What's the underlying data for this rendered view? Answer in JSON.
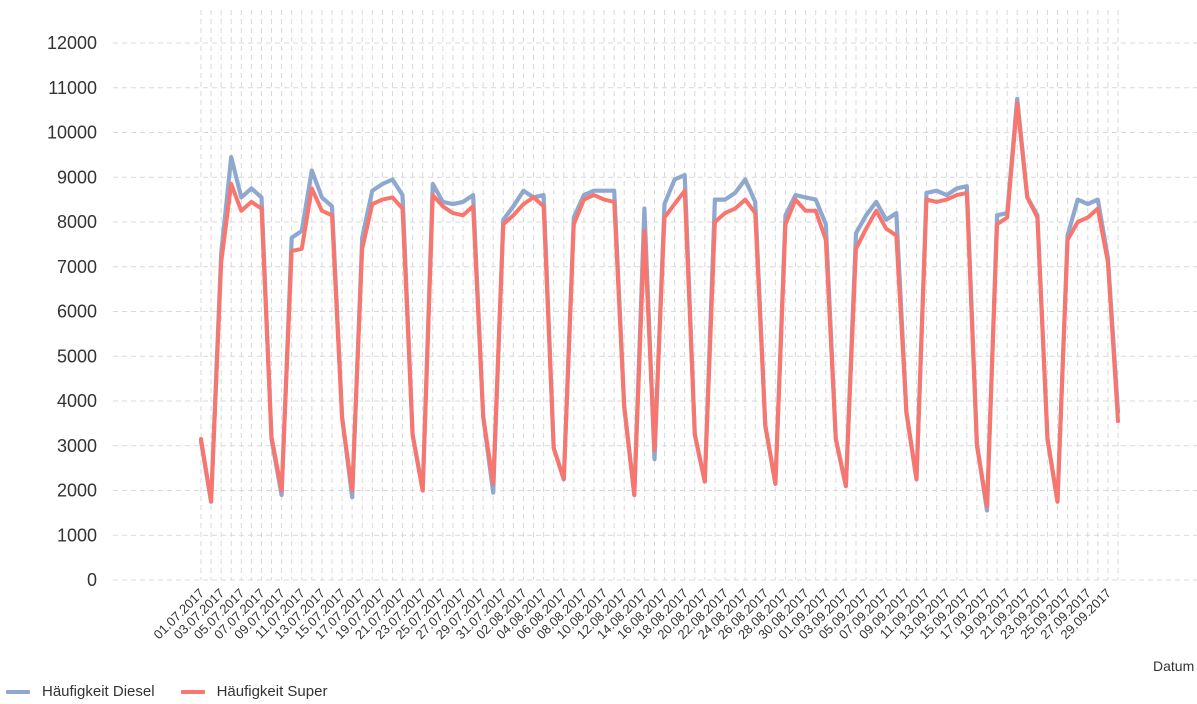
{
  "chart_data": {
    "type": "line",
    "xlabel": "Datum",
    "ylabel": "",
    "ylim": [
      0,
      12000
    ],
    "yticks": [
      0,
      1000,
      2000,
      3000,
      4000,
      5000,
      6000,
      7000,
      8000,
      9000,
      10000,
      11000,
      12000
    ],
    "grid": true,
    "legend": "bottom-left",
    "x": [
      "01.07.2017",
      "02.07.2017",
      "03.07.2017",
      "04.07.2017",
      "05.07.2017",
      "06.07.2017",
      "07.07.2017",
      "08.07.2017",
      "09.07.2017",
      "10.07.2017",
      "11.07.2017",
      "12.07.2017",
      "13.07.2017",
      "14.07.2017",
      "15.07.2017",
      "16.07.2017",
      "17.07.2017",
      "18.07.2017",
      "19.07.2017",
      "20.07.2017",
      "21.07.2017",
      "22.07.2017",
      "23.07.2017",
      "24.07.2017",
      "25.07.2017",
      "26.07.2017",
      "27.07.2017",
      "28.07.2017",
      "29.07.2017",
      "30.07.2017",
      "31.07.2017",
      "01.08.2017",
      "02.08.2017",
      "03.08.2017",
      "04.08.2017",
      "05.08.2017",
      "06.08.2017",
      "07.08.2017",
      "08.08.2017",
      "09.08.2017",
      "10.08.2017",
      "11.08.2017",
      "12.08.2017",
      "13.08.2017",
      "14.08.2017",
      "15.08.2017",
      "16.08.2017",
      "17.08.2017",
      "18.08.2017",
      "19.08.2017",
      "20.08.2017",
      "21.08.2017",
      "22.08.2017",
      "23.08.2017",
      "24.08.2017",
      "25.08.2017",
      "26.08.2017",
      "27.08.2017",
      "28.08.2017",
      "29.08.2017",
      "30.08.2017",
      "31.08.2017",
      "01.09.2017",
      "02.09.2017",
      "03.09.2017",
      "04.09.2017",
      "05.09.2017",
      "06.09.2017",
      "07.09.2017",
      "08.09.2017",
      "09.09.2017",
      "10.09.2017",
      "11.09.2017",
      "12.09.2017",
      "13.09.2017",
      "14.09.2017",
      "15.09.2017",
      "16.09.2017",
      "17.09.2017",
      "18.09.2017",
      "19.09.2017",
      "20.09.2017",
      "21.09.2017",
      "22.09.2017",
      "23.09.2017",
      "24.09.2017",
      "25.09.2017",
      "26.09.2017",
      "27.09.2017",
      "28.09.2017",
      "29.09.2017",
      "30.09.2017"
    ],
    "xtick_labels": [
      "01.07.2017",
      "03.07.2017",
      "05.07.2017",
      "07.07.2017",
      "09.07.2017",
      "11.07.2017",
      "13.07.2017",
      "15.07.2017",
      "17.07.2017",
      "19.07.2017",
      "21.07.2017",
      "23.07.2017",
      "25.07.2017",
      "27.07.2017",
      "29.07.2017",
      "31.07.2017",
      "02.08.2017",
      "04.08.2017",
      "06.08.2017",
      "08.08.2017",
      "10.08.2017",
      "12.08.2017",
      "14.08.2017",
      "16.08.2017",
      "18.08.2017",
      "20.08.2017",
      "22.08.2017",
      "24.08.2017",
      "26.08.2017",
      "28.08.2017",
      "30.08.2017",
      "01.09.2017",
      "03.09.2017",
      "05.09.2017",
      "07.09.2017",
      "09.09.2017",
      "11.09.2017",
      "13.09.2017",
      "15.09.2017",
      "17.09.2017",
      "19.09.2017",
      "21.09.2017",
      "23.09.2017",
      "25.09.2017",
      "27.09.2017",
      "29.09.2017"
    ],
    "series": [
      {
        "name": "Häufigkeit Diesel",
        "color": "#8EA8D0",
        "values": [
          3100,
          1750,
          7300,
          9450,
          8550,
          8750,
          8550,
          3150,
          1900,
          7650,
          7800,
          9150,
          8550,
          8350,
          3650,
          1850,
          7650,
          8700,
          8850,
          8950,
          8600,
          3250,
          2000,
          8850,
          8450,
          8400,
          8450,
          8600,
          3650,
          1950,
          8050,
          8350,
          8700,
          8550,
          8600,
          2950,
          2250,
          8100,
          8600,
          8700,
          8700,
          8700,
          3900,
          1900,
          8300,
          2700,
          8400,
          8950,
          9050,
          3250,
          2200,
          8500,
          8500,
          8650,
          8950,
          8450,
          3450,
          2150,
          8150,
          8600,
          8550,
          8500,
          7950,
          3150,
          2100,
          7750,
          8150,
          8450,
          8050,
          8200,
          3750,
          2250,
          8650,
          8700,
          8600,
          8750,
          8800,
          3050,
          1550,
          8150,
          8200,
          10750,
          8550,
          8150,
          3150,
          1750,
          7700,
          8500,
          8400,
          8500,
          7200,
          3750
        ]
      },
      {
        "name": "Häufigkeit Super",
        "color": "#F8766D",
        "values": [
          3150,
          1750,
          7100,
          8850,
          8250,
          8450,
          8300,
          3200,
          2000,
          7350,
          7400,
          8750,
          8250,
          8150,
          3600,
          2000,
          7400,
          8400,
          8500,
          8550,
          8300,
          3250,
          2000,
          8600,
          8350,
          8200,
          8150,
          8350,
          3650,
          2150,
          7950,
          8150,
          8400,
          8550,
          8350,
          2950,
          2250,
          7950,
          8500,
          8600,
          8500,
          8450,
          3850,
          1900,
          7800,
          2900,
          8100,
          8400,
          8700,
          3250,
          2200,
          8000,
          8200,
          8300,
          8500,
          8200,
          3450,
          2150,
          7950,
          8500,
          8250,
          8250,
          7600,
          3150,
          2100,
          7400,
          7850,
          8250,
          7850,
          7700,
          3750,
          2250,
          8500,
          8450,
          8500,
          8600,
          8650,
          3000,
          1650,
          7950,
          8100,
          10650,
          8550,
          8100,
          3150,
          1750,
          7600,
          8000,
          8100,
          8300,
          7100,
          3550
        ]
      }
    ]
  }
}
